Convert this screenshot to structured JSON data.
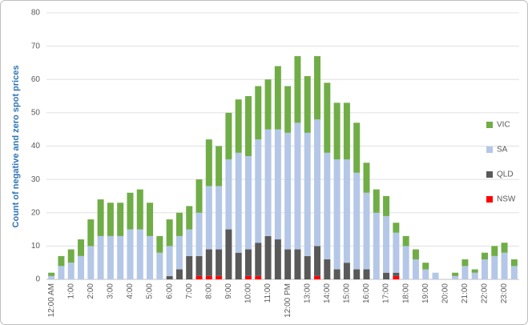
{
  "chart_data": {
    "type": "stacked_bar",
    "y_label": "Count of negative and zero spot prices",
    "categories": [
      "12:00 AM",
      null,
      "1:00",
      null,
      "2:00",
      null,
      "3:00",
      null,
      "4:00",
      null,
      "5:00",
      null,
      "6:00",
      null,
      "7:00",
      null,
      "8:00",
      null,
      "9:00",
      null,
      "10:00",
      null,
      "11:00",
      null,
      "12:00 PM",
      null,
      "13:00",
      null,
      "14:00",
      null,
      "15:00",
      null,
      "16:00",
      null,
      "17:00",
      null,
      "18:00",
      null,
      "19:00",
      null,
      "20:00",
      null,
      "21:00",
      null,
      "22:00",
      null,
      "23:00",
      null
    ],
    "series": [
      {
        "name": "NSW",
        "color": "#ff0000",
        "values": [
          0,
          0,
          0,
          0,
          0,
          0,
          0,
          0,
          0,
          0,
          0,
          0,
          0,
          0,
          0,
          1,
          1,
          1,
          0,
          0,
          1,
          1,
          0,
          0,
          0,
          0,
          0,
          1,
          0,
          0,
          0,
          0,
          0,
          0,
          0,
          1,
          0,
          0,
          0,
          0,
          0,
          0,
          0,
          0,
          0,
          0,
          0,
          0
        ]
      },
      {
        "name": "QLD",
        "color": "#595959",
        "values": [
          0,
          0,
          0,
          0,
          0,
          0,
          0,
          0,
          0,
          0,
          0,
          0,
          1,
          3,
          7,
          6,
          8,
          8,
          15,
          8,
          8,
          10,
          13,
          12,
          9,
          9,
          7,
          9,
          6,
          3,
          5,
          3,
          3,
          0,
          2,
          1,
          0,
          0,
          0,
          0,
          0,
          0,
          0,
          0,
          0,
          0,
          0,
          0
        ]
      },
      {
        "name": "SA",
        "color": "#b4c7e7",
        "values": [
          1,
          4,
          5,
          7,
          10,
          13,
          13,
          13,
          15,
          15,
          13,
          8,
          9,
          10,
          8,
          13,
          19,
          19,
          21,
          30,
          28,
          31,
          32,
          33,
          35,
          38,
          37,
          38,
          32,
          33,
          31,
          29,
          23,
          20,
          17,
          12,
          10,
          6,
          3,
          2,
          0,
          1,
          4,
          2,
          6,
          7,
          8,
          4
        ]
      },
      {
        "name": "VIC",
        "color": "#70ad47",
        "values": [
          1,
          3,
          4,
          5,
          8,
          11,
          10,
          10,
          11,
          12,
          10,
          5,
          8,
          7,
          7,
          10,
          14,
          12,
          14,
          16,
          18,
          16,
          15,
          19,
          14,
          20,
          17,
          19,
          21,
          17,
          17,
          15,
          9,
          7,
          6,
          3,
          3,
          3,
          2,
          0,
          0,
          1,
          2,
          1,
          2,
          3,
          3,
          2
        ]
      }
    ],
    "ylim": [
      0,
      80
    ],
    "yticks": [
      0,
      10,
      20,
      30,
      40,
      50,
      60,
      70,
      80
    ],
    "grid": true,
    "legend": "right"
  }
}
